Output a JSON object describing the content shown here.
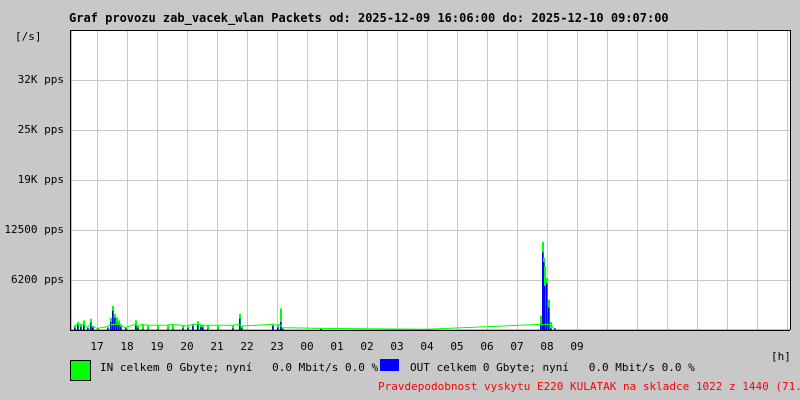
{
  "title": "Graf provozu zab_vacek_wlan Packets od: 2025-12-09 16:06:00 do: 2025-12-10 09:07:00",
  "colors": {
    "in": "#00ff00",
    "out": "#0000ff",
    "grid": "#c8c8c8",
    "background": "#c8c8c8",
    "plot_bg": "#ffffff",
    "footer": "#ff0000"
  },
  "legend": {
    "in": "IN celkem 0 Gbyte; nyní   0.0 Mbit/s 0.0 %",
    "out": "OUT celkem 0 Gbyte; nyní   0.0 Mbit/s 0.0 %"
  },
  "footer": "Pravdepodobnost vyskytu E220 KULATAK na skladce 1022 z 1440 (71.0 %)",
  "chart_data": {
    "type": "bar",
    "title": "Graf provozu zab_vacek_wlan Packets od: 2025-12-09 16:06:00 do: 2025-12-10 09:07:00",
    "ylabel": "[/s]",
    "xlabel": "[h]",
    "x_range": [
      "2025-12-09 16:06",
      "2025-12-10 16:06"
    ],
    "ylim": [
      0,
      37500
    ],
    "grid": true,
    "yticks": [
      {
        "value": 6200,
        "label": "6200 pps"
      },
      {
        "value": 12500,
        "label": "12500 pps"
      },
      {
        "value": 19000,
        "label": "19K pps"
      },
      {
        "value": 25000,
        "label": "25K pps"
      },
      {
        "value": 32000,
        "label": "32K pps"
      }
    ],
    "xticks": [
      "17",
      "18",
      "19",
      "20",
      "21",
      "22",
      "23",
      "00",
      "01",
      "02",
      "03",
      "04",
      "05",
      "06",
      "07",
      "08",
      "09"
    ],
    "series": [
      {
        "name": "IN",
        "color": "#00ff00"
      },
      {
        "name": "OUT",
        "color": "#0000ff"
      }
    ],
    "points": [
      [
        "16:14",
        500,
        300
      ],
      [
        "16:20",
        1000,
        600
      ],
      [
        "16:26",
        700,
        400
      ],
      [
        "16:32",
        1200,
        700
      ],
      [
        "16:40",
        300,
        200
      ],
      [
        "16:46",
        1400,
        900
      ],
      [
        "16:50",
        500,
        300
      ],
      [
        "17:00",
        200,
        100
      ],
      [
        "17:20",
        400,
        200
      ],
      [
        "17:26",
        1500,
        1000
      ],
      [
        "17:30",
        3000,
        2400
      ],
      [
        "17:34",
        2000,
        1500
      ],
      [
        "17:38",
        1600,
        800
      ],
      [
        "17:42",
        1200,
        700
      ],
      [
        "17:46",
        700,
        400
      ],
      [
        "17:56",
        300,
        200
      ],
      [
        "18:16",
        1200,
        600
      ],
      [
        "18:20",
        500,
        300
      ],
      [
        "18:30",
        700,
        100
      ],
      [
        "18:40",
        600,
        100
      ],
      [
        "19:00",
        600,
        100
      ],
      [
        "19:20",
        600,
        100
      ],
      [
        "19:30",
        700,
        100
      ],
      [
        "19:50",
        600,
        200
      ],
      [
        "20:00",
        500,
        200
      ],
      [
        "20:10",
        800,
        500
      ],
      [
        "20:20",
        1100,
        700
      ],
      [
        "20:26",
        700,
        400
      ],
      [
        "20:30",
        600,
        300
      ],
      [
        "20:40",
        600,
        100
      ],
      [
        "21:00",
        600,
        100
      ],
      [
        "21:30",
        600,
        200
      ],
      [
        "21:44",
        2000,
        1400
      ],
      [
        "21:48",
        500,
        200
      ],
      [
        "22:50",
        800,
        500
      ],
      [
        "23:00",
        600,
        300
      ],
      [
        "23:06",
        2700,
        1000
      ],
      [
        "23:10",
        300,
        100
      ],
      [
        "00:26",
        200,
        100
      ],
      [
        "04:00",
        100,
        100
      ],
      [
        "07:46",
        1800,
        800
      ],
      [
        "07:50",
        11000,
        9700
      ],
      [
        "07:52",
        9000,
        8500
      ],
      [
        "07:54",
        8000,
        5500
      ],
      [
        "07:58",
        6500,
        5800
      ],
      [
        "08:02",
        3800,
        2800
      ],
      [
        "08:06",
        1000,
        200
      ],
      [
        "08:14",
        200,
        200
      ]
    ]
  }
}
